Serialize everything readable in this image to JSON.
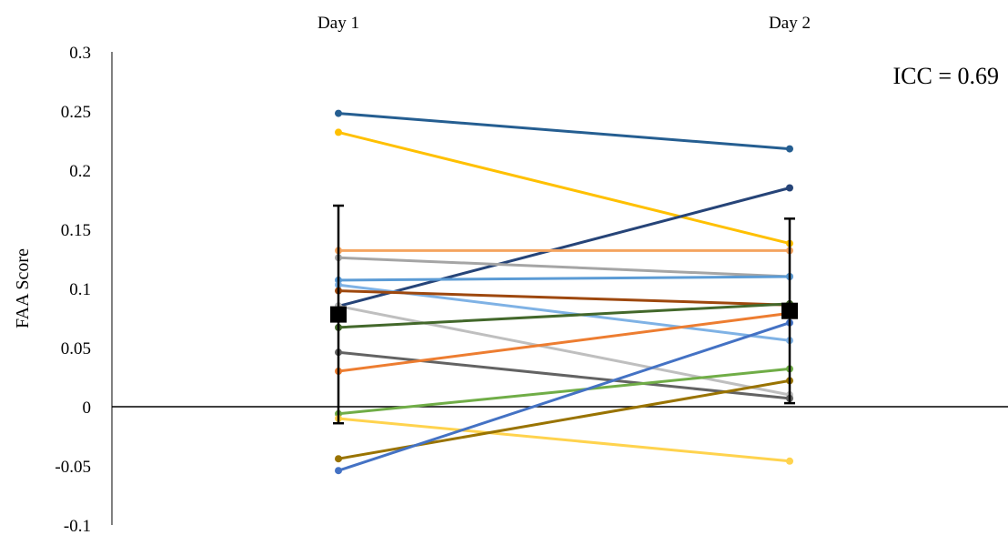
{
  "chart_data": {
    "type": "line",
    "title": "",
    "xlabel": "",
    "ylabel": "FAA Score",
    "categories": [
      "Day 1",
      "Day 2"
    ],
    "ylim": [
      -0.1,
      0.3
    ],
    "yticks": [
      "0.3",
      "0.25",
      "0.2",
      "0.15",
      "0.1",
      "0.05",
      "0",
      "-0.05",
      "-0.1"
    ],
    "ytick_values": [
      0.3,
      0.25,
      0.2,
      0.15,
      0.1,
      0.05,
      0,
      -0.05,
      -0.1
    ],
    "grid": false,
    "annotation": "ICC = 0.69",
    "series": [
      {
        "color": "#255e91",
        "values": [
          0.248,
          0.218
        ]
      },
      {
        "color": "#ffc000",
        "values": [
          0.232,
          0.138
        ]
      },
      {
        "color": "#264478",
        "values": [
          0.085,
          0.185
        ]
      },
      {
        "color": "#f4a460",
        "values": [
          0.132,
          0.132
        ]
      },
      {
        "color": "#a5a5a5",
        "values": [
          0.126,
          0.11
        ]
      },
      {
        "color": "#5b9bd5",
        "values": [
          0.107,
          0.11
        ]
      },
      {
        "color": "#7fb2e5",
        "values": [
          0.103,
          0.056
        ]
      },
      {
        "color": "#9e480e",
        "values": [
          0.098,
          0.086
        ]
      },
      {
        "color": "#bfbfbf",
        "values": [
          0.085,
          0.01
        ]
      },
      {
        "color": "#43682b",
        "values": [
          0.067,
          0.087
        ]
      },
      {
        "color": "#636363",
        "values": [
          0.046,
          0.007
        ]
      },
      {
        "color": "#ed7d31",
        "values": [
          0.03,
          0.079
        ]
      },
      {
        "color": "#70ad47",
        "values": [
          -0.006,
          0.032
        ]
      },
      {
        "color": "#ffd34e",
        "values": [
          -0.01,
          -0.046
        ]
      },
      {
        "color": "#997300",
        "values": [
          -0.044,
          0.022
        ]
      },
      {
        "color": "#4472c4",
        "values": [
          -0.054,
          0.071
        ]
      }
    ],
    "mean": {
      "values": [
        0.078,
        0.081
      ],
      "error_low": [
        -0.014,
        0.003
      ],
      "error_high": [
        0.17,
        0.159
      ],
      "color": "#000000"
    }
  }
}
